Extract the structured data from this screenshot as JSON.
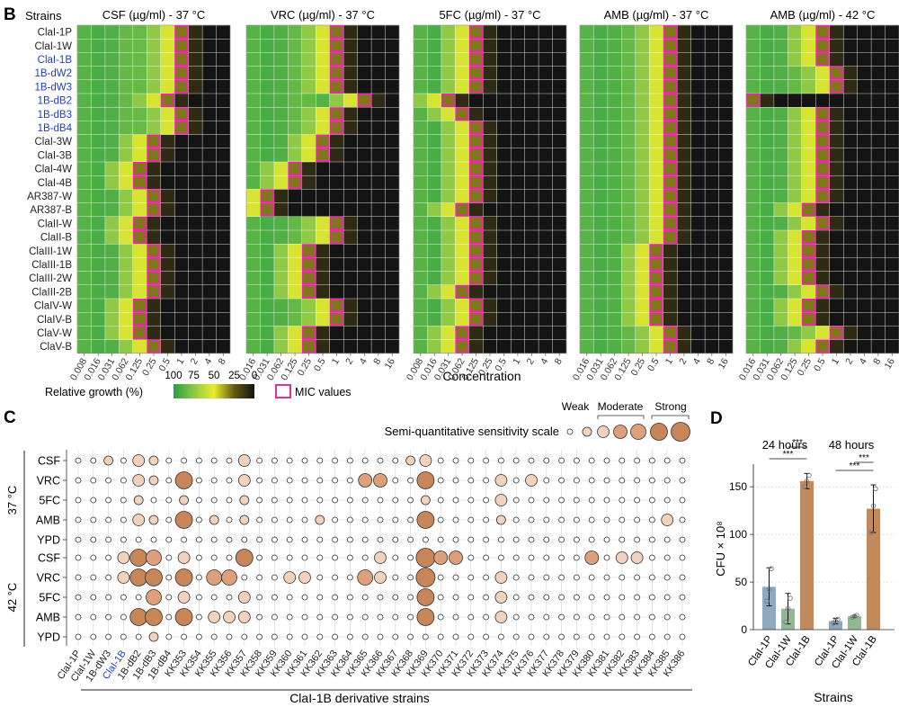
{
  "panels": {
    "b": "B",
    "c": "C",
    "d": "D"
  },
  "colors": {
    "blue_strain": "#1f3fbf",
    "mic_border": "#e0309a",
    "bubble_fill": "#c88558",
    "bubble_stroke": "#333333",
    "bar_1P": "#8fa9bf",
    "bar_1W": "#8fb893",
    "bar_1B": "#c08a5e"
  },
  "chart_data": [
    {
      "type": "heatmap",
      "id": "mic_heatmaps",
      "row_header": "Strains",
      "strains": [
        "ClaI-1P",
        "ClaI-1W",
        "ClaI-1B",
        "1B-dW2",
        "1B-dW3",
        "1B-dB2",
        "1B-dB3",
        "1B-dB4",
        "ClaI-3W",
        "ClaI-3B",
        "ClaI-4W",
        "ClaI-4B",
        "AR387-W",
        "AR387-B",
        "ClaII-W",
        "ClaII-B",
        "ClaIII-1W",
        "ClaIII-1B",
        "ClaIII-2W",
        "ClaIII-2B",
        "ClaIV-W",
        "ClaIV-B",
        "ClaV-W",
        "ClaV-B"
      ],
      "blue_strains": [
        "ClaI-1B",
        "1B-dW2",
        "1B-dW3",
        "1B-dB2",
        "1B-dB3",
        "1B-dB4"
      ],
      "xlabel": "Concentration",
      "colorbar": {
        "title": "Relative growth (%)",
        "ticks": [
          "100",
          "75",
          "50",
          "25",
          "0"
        ],
        "mic_label": "MIC values"
      },
      "heatmaps": [
        {
          "title": "CSF (µg/ml) - 37 °C",
          "concentrations": [
            "0.008",
            "0.016",
            "0.031",
            "0.062",
            "0.125",
            "0.25",
            "0.5",
            "1",
            "2",
            "4",
            "8"
          ],
          "mic_index": [
            7,
            7,
            7,
            7,
            7,
            6,
            7,
            7,
            5,
            5,
            4,
            4,
            5,
            5,
            4,
            4,
            5,
            5,
            5,
            5,
            4,
            4,
            4,
            5
          ]
        },
        {
          "title": "VRC (µg/ml) - 37 °C",
          "concentrations": [
            "0.016",
            "0.031",
            "0.062",
            "0.125",
            "0.25",
            "0.5",
            "1",
            "2",
            "4",
            "8",
            "16"
          ],
          "mic_index": [
            6,
            6,
            6,
            6,
            6,
            8,
            6,
            6,
            5,
            5,
            3,
            3,
            1,
            1,
            6,
            6,
            4,
            4,
            4,
            4,
            6,
            6,
            4,
            4
          ]
        },
        {
          "title": "5FC (µg/ml) - 37 °C",
          "concentrations": [
            "0.008",
            "0.016",
            "0.031",
            "0.062",
            "0.125",
            "0.25",
            "0.5",
            "1",
            "2",
            "4",
            "8"
          ],
          "mic_index": [
            4,
            4,
            4,
            4,
            4,
            2,
            3,
            4,
            4,
            4,
            4,
            4,
            4,
            3,
            4,
            4,
            4,
            4,
            4,
            3,
            4,
            4,
            3,
            3
          ]
        },
        {
          "title": "AMB (µg/ml) - 37 °C",
          "concentrations": [
            "0.016",
            "0.031",
            "0.062",
            "0.125",
            "0.25",
            "0.5",
            "1",
            "2",
            "4",
            "8",
            "16"
          ],
          "mic_index": [
            6,
            6,
            6,
            6,
            6,
            6,
            6,
            6,
            6,
            6,
            6,
            6,
            6,
            6,
            6,
            6,
            5,
            5,
            5,
            5,
            5,
            5,
            6,
            6
          ]
        },
        {
          "title": "AMB (µg/ml) - 42 °C",
          "concentrations": [
            "0.016",
            "0.031",
            "0.062",
            "0.125",
            "0.25",
            "0.5",
            "1",
            "2",
            "4",
            "8",
            "16"
          ],
          "mic_index": [
            5,
            5,
            5,
            6,
            6,
            0,
            5,
            5,
            5,
            5,
            5,
            5,
            5,
            4,
            5,
            4,
            4,
            4,
            4,
            5,
            4,
            4,
            6,
            5
          ]
        }
      ]
    },
    {
      "type": "scatter",
      "id": "bubble_plot",
      "scale_title": "Semi-quantitative sensitivity scale",
      "scale_labels": [
        "Weak",
        "Moderate",
        "Strong"
      ],
      "scale_levels": [
        0,
        1,
        2,
        3,
        4,
        5,
        6
      ],
      "x_title": "ClaI-1B derivative strains",
      "strains": [
        "ClaI-1P",
        "ClaI-1W",
        "1B-dW3",
        "ClaI-1B",
        "1B-dB2",
        "1B-dB3",
        "1B-dB4",
        "KK353",
        "KK354",
        "KK355",
        "KK356",
        "KK357",
        "KK358",
        "KK359",
        "KK360",
        "KK361",
        "KK362",
        "KK363",
        "KK364",
        "KK365",
        "KK366",
        "KK367",
        "KK368",
        "KK369",
        "KK370",
        "KK371",
        "KK372",
        "KK373",
        "KK374",
        "KK375",
        "KK376",
        "KK377",
        "KK378",
        "KK379",
        "KK380",
        "KK381",
        "KK382",
        "KK383",
        "KK384",
        "KK385",
        "KK386"
      ],
      "blue_strain": "ClaI-1B",
      "groups": [
        {
          "label": "37 °C",
          "rows": [
            {
              "drug": "CSF",
              "values": [
                0,
                0,
                1,
                0,
                2,
                1,
                0,
                0,
                0,
                0,
                0,
                2,
                0,
                0,
                0,
                0,
                0,
                0,
                0,
                0,
                0,
                0,
                1,
                2,
                0,
                0,
                0,
                0,
                0,
                0,
                0,
                0,
                0,
                0,
                0,
                0,
                0,
                0,
                0,
                0,
                0
              ]
            },
            {
              "drug": "VRC",
              "values": [
                0,
                0,
                0,
                0,
                2,
                1,
                0,
                5,
                0,
                0,
                0,
                2,
                0,
                0,
                0,
                0,
                0,
                0,
                0,
                3,
                3,
                0,
                0,
                5,
                0,
                0,
                0,
                0,
                2,
                0,
                2,
                0,
                0,
                0,
                0,
                0,
                0,
                0,
                0,
                0,
                0
              ]
            },
            {
              "drug": "5FC",
              "values": [
                0,
                0,
                0,
                0,
                1,
                0,
                0,
                1,
                0,
                0,
                0,
                1,
                0,
                0,
                0,
                0,
                0,
                0,
                0,
                0,
                0,
                0,
                0,
                1,
                0,
                0,
                0,
                0,
                2,
                0,
                0,
                0,
                0,
                0,
                0,
                0,
                0,
                0,
                0,
                0,
                0
              ]
            },
            {
              "drug": "AMB",
              "values": [
                0,
                0,
                0,
                0,
                2,
                1,
                0,
                5,
                0,
                1,
                0,
                1,
                0,
                0,
                0,
                0,
                1,
                0,
                0,
                0,
                0,
                0,
                0,
                5,
                0,
                0,
                0,
                0,
                1,
                0,
                0,
                0,
                0,
                0,
                0,
                0,
                0,
                0,
                0,
                2,
                0
              ]
            },
            {
              "drug": "YPD",
              "values": [
                0,
                0,
                0,
                0,
                0,
                0,
                0,
                0,
                0,
                0,
                0,
                0,
                0,
                0,
                0,
                0,
                0,
                0,
                0,
                0,
                0,
                0,
                0,
                0,
                0,
                0,
                0,
                0,
                0,
                0,
                0,
                0,
                0,
                0,
                0,
                0,
                0,
                0,
                0,
                0,
                0
              ]
            }
          ]
        },
        {
          "label": "42 °C",
          "rows": [
            {
              "drug": "CSF",
              "values": [
                0,
                0,
                0,
                2,
                5,
                4,
                0,
                2,
                0,
                0,
                0,
                5,
                0,
                0,
                0,
                0,
                0,
                0,
                0,
                0,
                2,
                0,
                0,
                6,
                3,
                3,
                0,
                0,
                0,
                0,
                0,
                0,
                0,
                0,
                3,
                0,
                2,
                2,
                0,
                0,
                0
              ]
            },
            {
              "drug": "VRC",
              "values": [
                0,
                0,
                0,
                2,
                5,
                5,
                0,
                5,
                0,
                4,
                4,
                0,
                0,
                0,
                2,
                2,
                0,
                0,
                0,
                4,
                2,
                0,
                0,
                6,
                0,
                0,
                0,
                0,
                2,
                0,
                0,
                0,
                0,
                0,
                0,
                0,
                0,
                0,
                0,
                0,
                0
              ]
            },
            {
              "drug": "5FC",
              "values": [
                0,
                0,
                0,
                0,
                0,
                4,
                0,
                2,
                0,
                0,
                0,
                2,
                0,
                0,
                0,
                0,
                0,
                0,
                0,
                0,
                0,
                0,
                0,
                5,
                0,
                0,
                0,
                0,
                2,
                0,
                0,
                0,
                0,
                0,
                0,
                0,
                0,
                0,
                0,
                0,
                0
              ]
            },
            {
              "drug": "AMB",
              "values": [
                0,
                0,
                0,
                0,
                5,
                5,
                0,
                5,
                0,
                2,
                2,
                2,
                0,
                0,
                0,
                0,
                0,
                0,
                0,
                0,
                0,
                0,
                0,
                5,
                0,
                0,
                0,
                0,
                2,
                0,
                0,
                0,
                0,
                0,
                0,
                0,
                0,
                0,
                0,
                0,
                0
              ]
            },
            {
              "drug": "YPD",
              "values": [
                0,
                0,
                0,
                0,
                0,
                1,
                0,
                0,
                0,
                0,
                0,
                0,
                0,
                0,
                0,
                0,
                0,
                0,
                0,
                0,
                0,
                0,
                0,
                0,
                0,
                0,
                0,
                0,
                0,
                0,
                0,
                0,
                0,
                0,
                0,
                0,
                0,
                0,
                0,
                0,
                0
              ]
            }
          ]
        }
      ]
    },
    {
      "type": "bar",
      "id": "cfu_bars",
      "title": "",
      "groups": [
        {
          "label": "24 hours",
          "categories": [
            "ClaI-1P",
            "ClaI-1W",
            "ClaI-1B"
          ],
          "values": [
            45,
            22,
            156
          ],
          "errors": [
            20,
            16,
            8
          ],
          "points": [
            [
              30,
              42,
              64
            ],
            [
              8,
              22,
              33
            ],
            [
              150,
              156,
              162
            ]
          ]
        },
        {
          "label": "48 hours",
          "categories": [
            "ClaI-1P",
            "ClaI-1W",
            "ClaI-1B"
          ],
          "values": [
            9,
            14,
            127
          ],
          "errors": [
            3,
            1,
            25
          ],
          "points": [
            [
              7,
              9,
              11
            ],
            [
              13,
              14,
              15
            ],
            [
              102,
              130,
              148
            ]
          ]
        }
      ],
      "significance": "***",
      "ylabel": "CFU × 10⁸",
      "xlabel": "Strains",
      "ylim": [
        0,
        170
      ],
      "yticks": [
        0,
        50,
        100,
        150
      ]
    }
  ]
}
